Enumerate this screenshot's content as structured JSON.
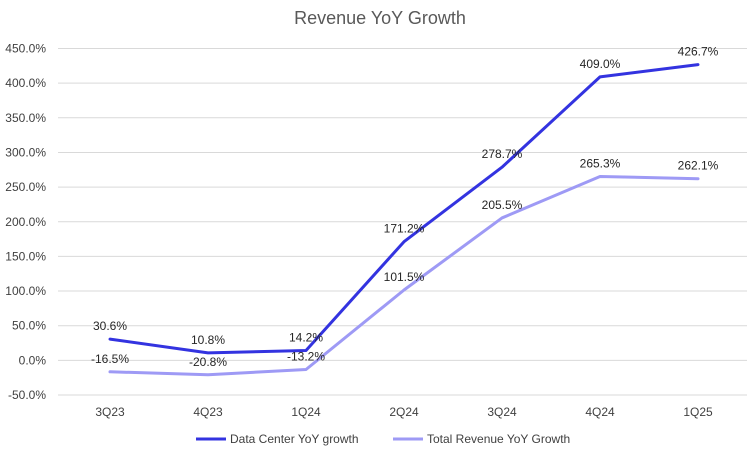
{
  "chart_data": {
    "type": "line",
    "title": "Revenue YoY Growth",
    "categories": [
      "3Q23",
      "4Q23",
      "1Q24",
      "2Q24",
      "3Q24",
      "4Q24",
      "1Q25"
    ],
    "ylim": [
      -50,
      450
    ],
    "ytick_step": 50,
    "ytick_format": "percent_1dp",
    "grid": true,
    "legend_position": "bottom",
    "series": [
      {
        "name": "Data Center YoY growth",
        "color": "#3333e0",
        "values": [
          30.6,
          10.8,
          14.2,
          171.2,
          278.7,
          409.0,
          426.7
        ],
        "labels": [
          "30.6%",
          "10.8%",
          "14.2%",
          "171.2%",
          "278.7%",
          "409.0%",
          "426.7%"
        ]
      },
      {
        "name": "Total Revenue YoY Growth",
        "color": "#9e9af5",
        "values": [
          -16.5,
          -20.8,
          -13.2,
          101.5,
          205.5,
          265.3,
          262.1
        ],
        "labels": [
          "-16.5%",
          "-20.8%",
          "-13.2%",
          "101.5%",
          "205.5%",
          "265.3%",
          "262.1%"
        ]
      }
    ]
  }
}
